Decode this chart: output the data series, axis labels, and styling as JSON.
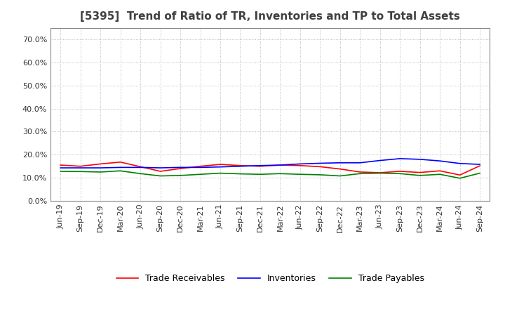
{
  "title": "[5395]  Trend of Ratio of TR, Inventories and TP to Total Assets",
  "labels": [
    "Jun-19",
    "Sep-19",
    "Dec-19",
    "Mar-20",
    "Jun-20",
    "Sep-20",
    "Dec-20",
    "Mar-21",
    "Jun-21",
    "Sep-21",
    "Dec-21",
    "Mar-22",
    "Jun-22",
    "Sep-22",
    "Dec-22",
    "Mar-23",
    "Jun-23",
    "Sep-23",
    "Dec-23",
    "Mar-24",
    "Jun-24",
    "Sep-24"
  ],
  "trade_receivables": [
    0.155,
    0.15,
    0.16,
    0.168,
    0.148,
    0.128,
    0.14,
    0.15,
    0.158,
    0.153,
    0.15,
    0.155,
    0.153,
    0.148,
    0.138,
    0.125,
    0.122,
    0.128,
    0.123,
    0.13,
    0.112,
    0.152
  ],
  "inventories": [
    0.143,
    0.143,
    0.143,
    0.145,
    0.145,
    0.143,
    0.145,
    0.145,
    0.147,
    0.15,
    0.153,
    0.155,
    0.16,
    0.163,
    0.165,
    0.165,
    0.175,
    0.183,
    0.18,
    0.173,
    0.162,
    0.158
  ],
  "trade_payables": [
    0.128,
    0.127,
    0.125,
    0.13,
    0.118,
    0.108,
    0.11,
    0.115,
    0.12,
    0.117,
    0.115,
    0.118,
    0.115,
    0.113,
    0.108,
    0.118,
    0.12,
    0.118,
    0.11,
    0.115,
    0.098,
    0.12
  ],
  "tr_color": "#FF0000",
  "inv_color": "#0000FF",
  "tp_color": "#008000",
  "ylim": [
    0.0,
    0.75
  ],
  "yticks": [
    0.0,
    0.1,
    0.2,
    0.3,
    0.4,
    0.5,
    0.6,
    0.7
  ],
  "background_color": "#FFFFFF",
  "grid_color": "#AAAAAA",
  "title_color": "#404040",
  "title_fontsize": 11,
  "legend_fontsize": 9,
  "tick_fontsize": 8
}
